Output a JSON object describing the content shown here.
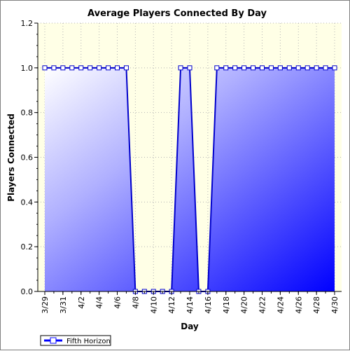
{
  "chart_data": {
    "type": "area",
    "title": "Average Players Connected By Day",
    "xlabel": "Day",
    "ylabel": "Players Connected",
    "ylim": [
      0,
      1.2
    ],
    "yticks": [
      "0.0",
      "0.2",
      "0.4",
      "0.6",
      "0.8",
      "1.0",
      "1.2"
    ],
    "x": [
      "3/29",
      "3/30",
      "3/31",
      "4/1",
      "4/2",
      "4/3",
      "4/4",
      "4/5",
      "4/6",
      "4/7",
      "4/8",
      "4/9",
      "4/10",
      "4/11",
      "4/12",
      "4/13",
      "4/14",
      "4/15",
      "4/16",
      "4/17",
      "4/18",
      "4/19",
      "4/20",
      "4/21",
      "4/22",
      "4/23",
      "4/24",
      "4/25",
      "4/26",
      "4/27",
      "4/28",
      "4/29",
      "4/30"
    ],
    "xtick_labels": [
      "3/29",
      "3/31",
      "4/2",
      "4/4",
      "4/6",
      "4/8",
      "4/10",
      "4/12",
      "4/14",
      "4/16",
      "4/18",
      "4/20",
      "4/22",
      "4/24",
      "4/26",
      "4/28",
      "4/30"
    ],
    "series": [
      {
        "name": "Fifth Horizon",
        "values": [
          1,
          1,
          1,
          1,
          1,
          1,
          1,
          1,
          1,
          1,
          0,
          0,
          0,
          0,
          0,
          1,
          1,
          0,
          0,
          1,
          1,
          1,
          1,
          1,
          1,
          1,
          1,
          1,
          1,
          1,
          1,
          1,
          1
        ],
        "color": "#0000ff",
        "line_color": "#0000cc"
      }
    ],
    "grid": true,
    "legend": "bottom-left",
    "plot_background": "#ffffe6"
  }
}
